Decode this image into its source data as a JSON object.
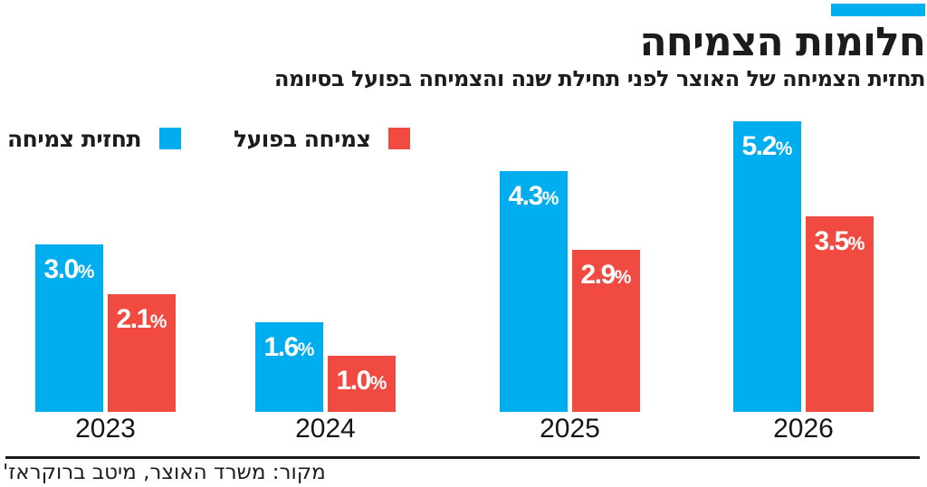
{
  "header": {
    "title": "חלומות הצמיחה",
    "subtitle": "תחזית הצמיחה של האוצר לפני תחילת שנה והצמיחה בפועל בסיומה"
  },
  "colors": {
    "forecast_blue": "#00AEEF",
    "actual_red": "#F04A41",
    "tag_blue": "#00AEEF",
    "text_dark": "#1c1c1c"
  },
  "legend": [
    {
      "label": "תחזית צמיחה",
      "color": "#00AEEF"
    },
    {
      "label": "צמיחה בפועל",
      "color": "#F04A41"
    }
  ],
  "chart_data": {
    "type": "bar",
    "categories": [
      "2023",
      "2024",
      "2025",
      "2026"
    ],
    "series": [
      {
        "name": "תחזית צמיחה",
        "color": "#00AEEF",
        "values": [
          3.0,
          1.6,
          4.3,
          5.2
        ],
        "labels": [
          "3.0",
          "1.6",
          "4.3",
          "5.2"
        ]
      },
      {
        "name": "צמיחה בפועל",
        "color": "#F04A41",
        "values": [
          2.1,
          1.0,
          2.9,
          3.5
        ],
        "labels": [
          "2.1",
          "1.0",
          "2.9",
          "3.5"
        ]
      }
    ],
    "unit": "%",
    "title": "חלומות הצמיחה",
    "xlabel": "",
    "ylabel": "",
    "ylim": [
      0,
      5.5
    ],
    "grid": false,
    "legend_position": "top-left",
    "value_labels": "inside-top"
  },
  "footer": {
    "source": "מקור: משרד האוצר, מיטב ברוקראז'"
  }
}
